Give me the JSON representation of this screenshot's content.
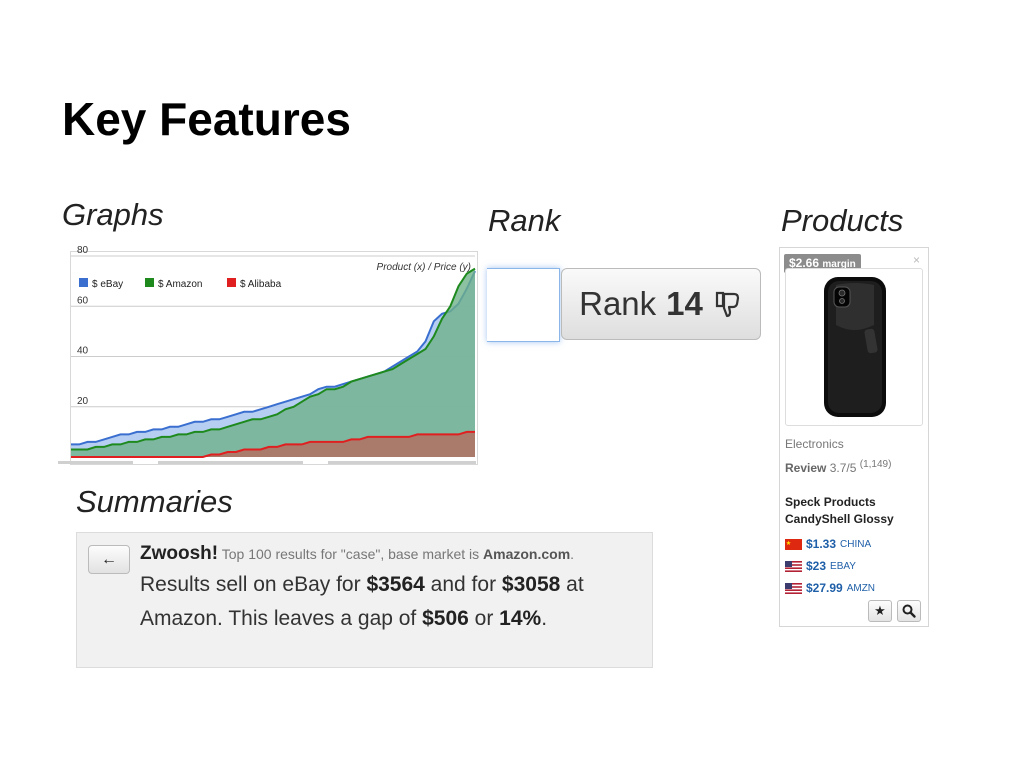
{
  "slide": {
    "title": "Key Features"
  },
  "sections": {
    "graphs": "Graphs",
    "rank": "Rank",
    "products": "Products",
    "summaries": "Summaries"
  },
  "chart_data": {
    "type": "area",
    "title": "Product (x) / Price (y)",
    "xlabel": "",
    "ylabel": "",
    "x": [
      1,
      2,
      3,
      4,
      5,
      6,
      7,
      8,
      9,
      10,
      11,
      12,
      13,
      14,
      15,
      16,
      17,
      18,
      19,
      20,
      21,
      22,
      23,
      24,
      25,
      26,
      27,
      28,
      29,
      30,
      31,
      32,
      33,
      34,
      35,
      36,
      37,
      38,
      39,
      40,
      41,
      42,
      43,
      44,
      45,
      46,
      47,
      48,
      49,
      50
    ],
    "ylim": [
      0,
      80
    ],
    "yticks": [
      20,
      40,
      60,
      80
    ],
    "grid": true,
    "legend_position": "top-left",
    "series": [
      {
        "name": "$ eBay",
        "color": "#3a6fd0",
        "values": [
          5,
          5,
          6,
          6,
          7,
          8,
          9,
          9,
          10,
          10,
          11,
          11,
          12,
          12,
          13,
          14,
          14,
          15,
          15,
          16,
          17,
          18,
          18,
          19,
          20,
          21,
          22,
          23,
          24,
          25,
          27,
          28,
          28,
          29,
          30,
          31,
          32,
          33,
          34,
          36,
          38,
          40,
          42,
          46,
          54,
          57,
          58,
          61,
          67,
          74
        ]
      },
      {
        "name": "$ Amazon",
        "color": "#1e8a1e",
        "values": [
          3,
          3,
          3,
          4,
          4,
          5,
          5,
          6,
          6,
          7,
          7,
          8,
          8,
          9,
          9,
          10,
          10,
          11,
          11,
          12,
          13,
          14,
          15,
          15,
          16,
          17,
          19,
          20,
          22,
          24,
          25,
          27,
          27,
          28,
          30,
          31,
          32,
          33,
          34,
          35,
          37,
          39,
          41,
          43,
          48,
          55,
          60,
          68,
          73,
          75
        ]
      },
      {
        "name": "$ Alibaba",
        "color": "#e02020",
        "values": [
          0,
          0,
          0,
          0,
          0,
          0,
          0,
          0,
          0,
          0,
          0,
          0,
          0,
          0,
          0,
          0,
          0,
          1,
          1,
          2,
          2,
          3,
          3,
          3,
          4,
          4,
          5,
          5,
          5,
          6,
          6,
          6,
          6,
          6,
          7,
          7,
          8,
          8,
          8,
          8,
          8,
          8,
          9,
          9,
          9,
          9,
          9,
          9,
          10,
          10
        ]
      }
    ]
  },
  "rank": {
    "label": "Rank",
    "value": "14",
    "icon": "thumbs-down-icon"
  },
  "product": {
    "margin_value": "$2.66",
    "margin_label": "margin",
    "close": "×",
    "category": "Electronics",
    "review_label": "Review",
    "review_score": "3.7/5",
    "review_count": "(1,149)",
    "name_line1": "Speck Products",
    "name_line2": "CandyShell Glossy",
    "prices": [
      {
        "price": "$1.33",
        "market": "CHINA",
        "flag": "china-flag-icon"
      },
      {
        "price": "$23",
        "market": "EBAY",
        "flag": "us-flag-icon"
      },
      {
        "price": "$27.99",
        "market": "AMZN",
        "flag": "us-flag-icon"
      }
    ],
    "buttons": {
      "star": "★",
      "search": "🔍"
    }
  },
  "summary": {
    "back": "←",
    "brand": "Zwoosh!",
    "head_pre": "Top 100 results for \"case\", base market is ",
    "head_market": "Amazon.com",
    "head_post": ".",
    "l1_a": "Results sell on eBay for ",
    "l1_b": "$3564",
    "l1_c": " and for ",
    "l1_d": "$3058",
    "l1_e": " at",
    "l2_a": "Amazon. This leaves a gap of ",
    "l2_b": "$506",
    "l2_c": " or ",
    "l2_d": "14%",
    "l2_e": "."
  }
}
